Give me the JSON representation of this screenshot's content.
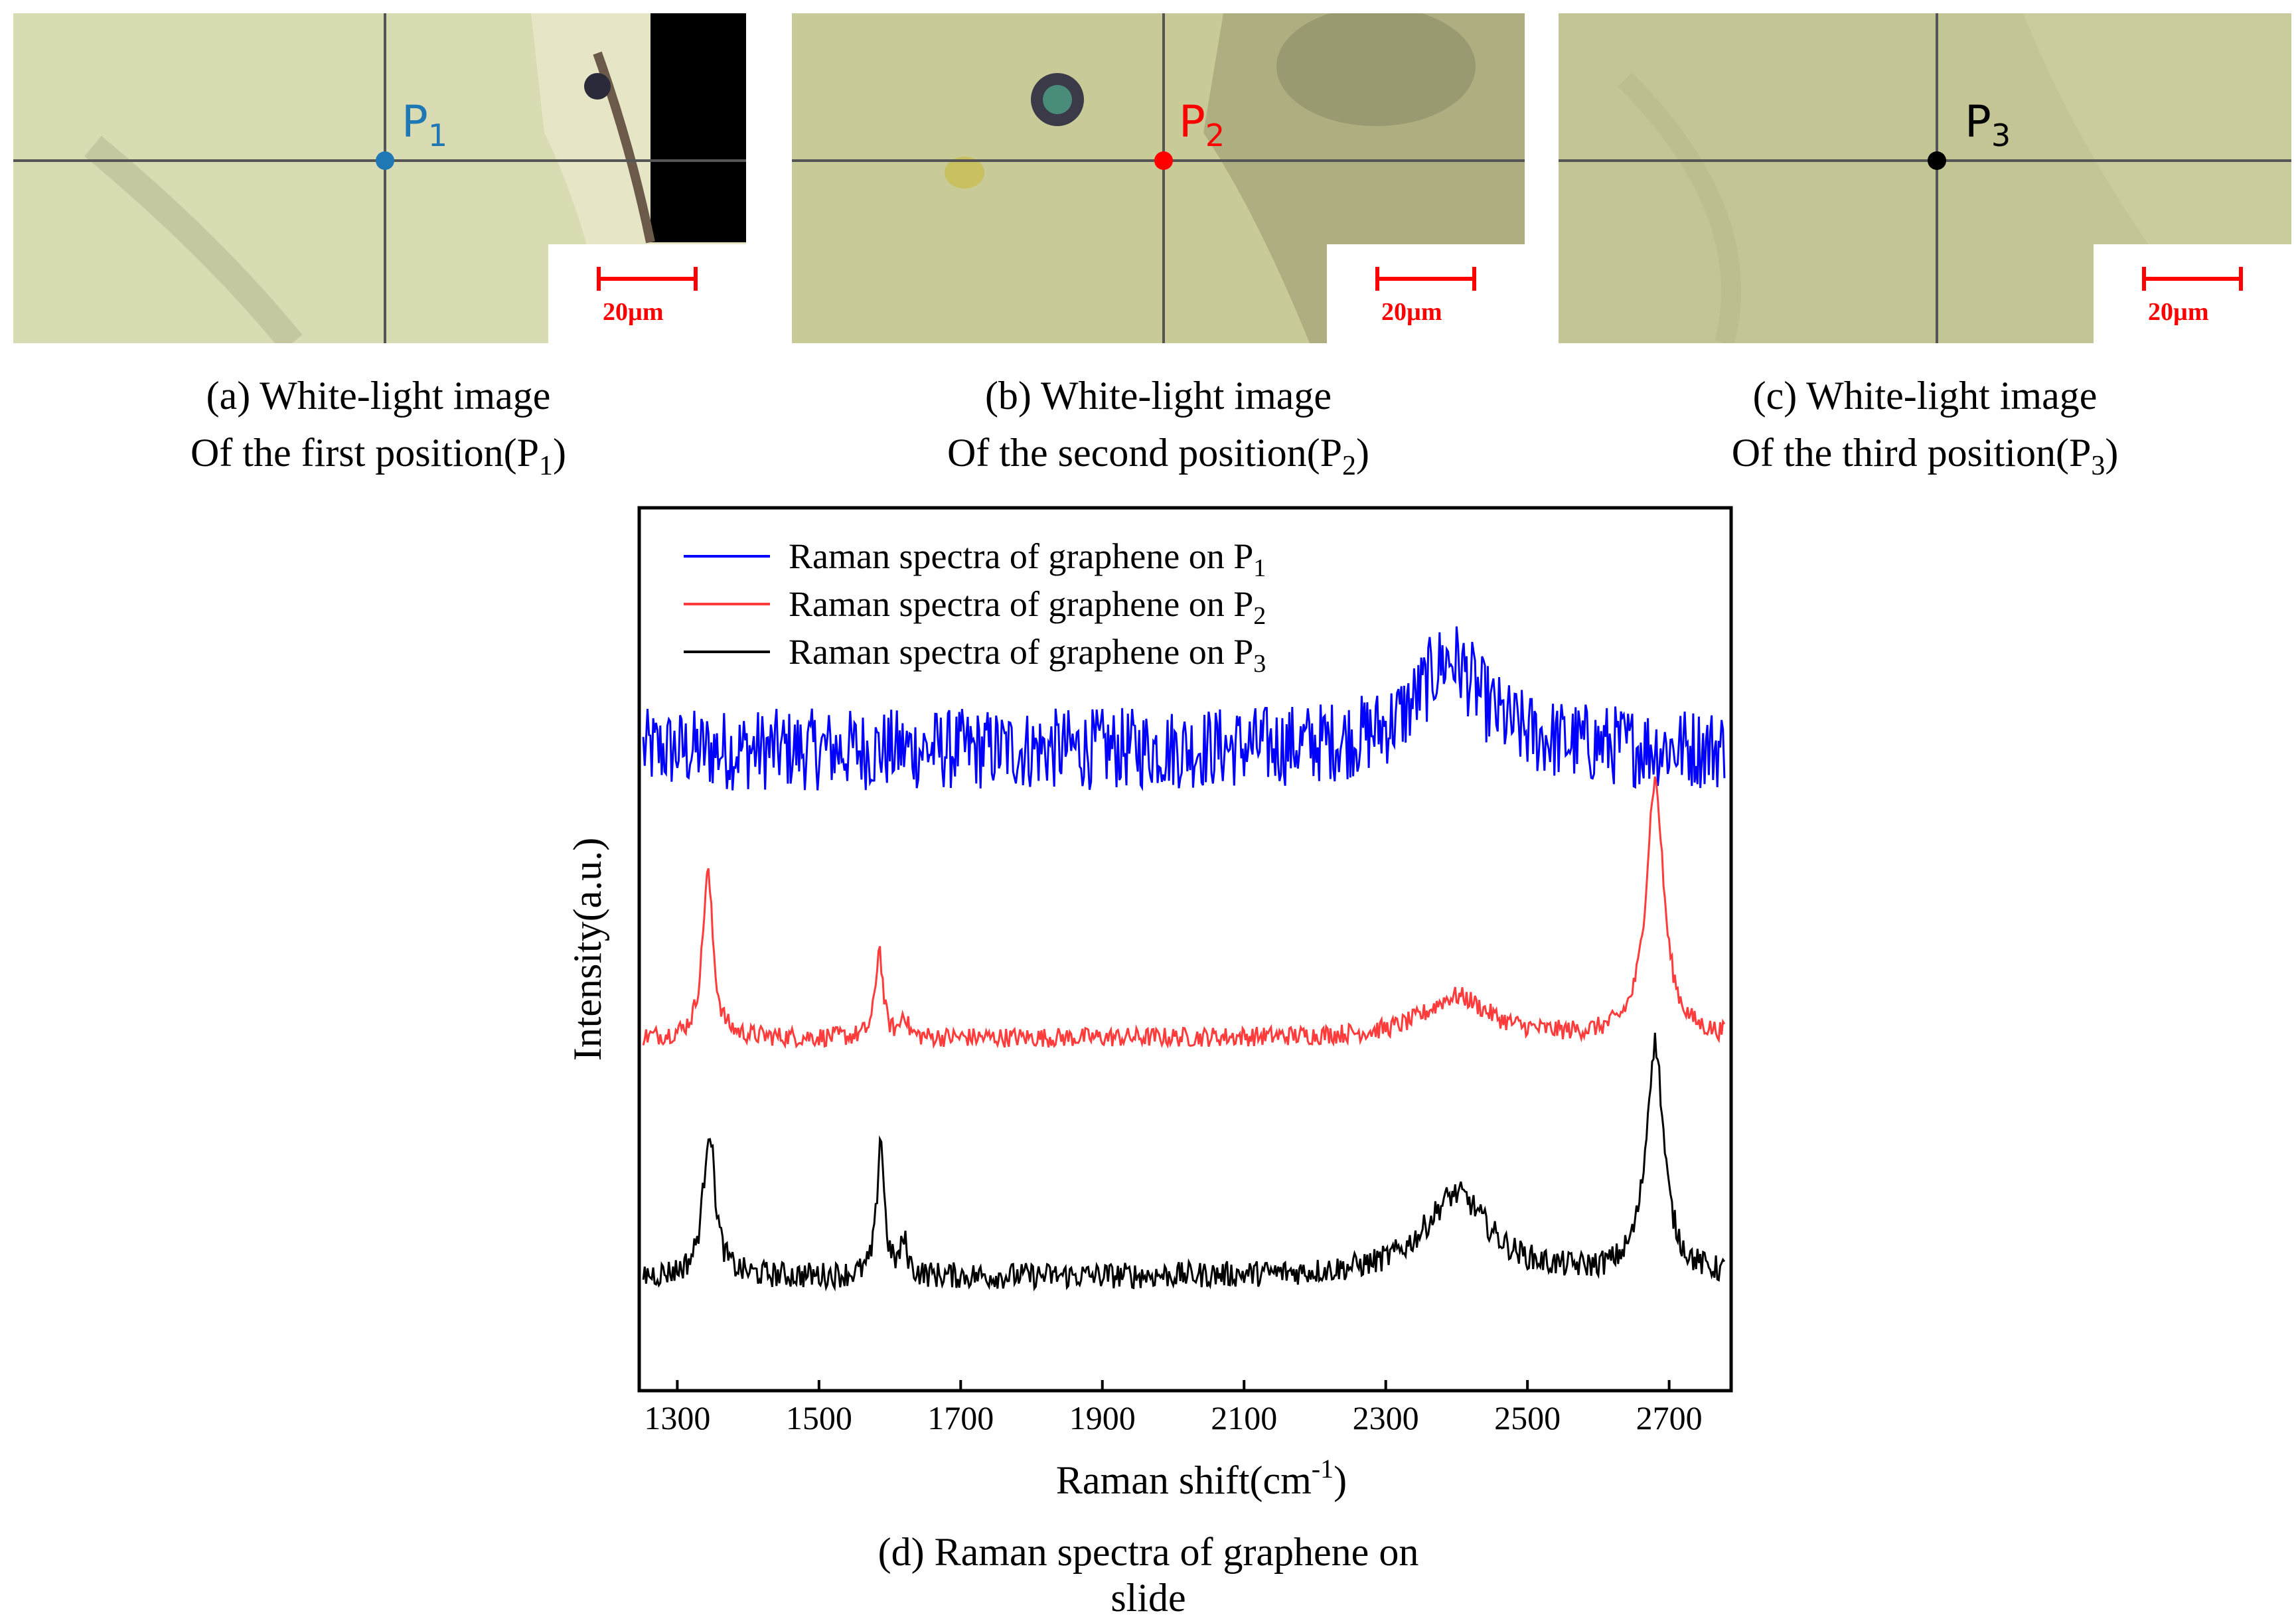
{
  "panels": [
    {
      "id": "a",
      "point_label": "P",
      "point_sub": "1",
      "point_color": "#1f77b4",
      "scale_label": "20µm",
      "caption_line1": "(a)  White-light image",
      "caption_line2_prefix": "Of the first position(P",
      "caption_line2_sub": "1",
      "caption_line2_suffix": ")"
    },
    {
      "id": "b",
      "point_label": "P",
      "point_sub": "2",
      "point_color": "#ff0000",
      "scale_label": "20µm",
      "caption_line1": "(b) White-light image",
      "caption_line2_prefix": "Of the second position(P",
      "caption_line2_sub": "2",
      "caption_line2_suffix": ")"
    },
    {
      "id": "c",
      "point_label": "P",
      "point_sub": "3",
      "point_color": "#000000",
      "scale_label": "20µm",
      "caption_line1": "(c) White-light image",
      "caption_line2_prefix": "Of the third position(P",
      "caption_line2_sub": "3",
      "caption_line2_suffix": ")"
    }
  ],
  "chart_data": {
    "type": "line",
    "title": "(d) Raman spectra of graphene on slide",
    "xlabel_prefix": "Raman shift(cm",
    "xlabel_sup": "-1",
    "xlabel_suffix": ")",
    "ylabel": "Intensity(a.u.)",
    "xlim": [
      1250,
      2780
    ],
    "ylim": [
      0,
      100
    ],
    "xticks": [
      1300,
      1500,
      1700,
      1900,
      2100,
      2300,
      2500,
      2700
    ],
    "y_ticks_labeled": false,
    "legend_position": "top-left",
    "series": [
      {
        "name": "Raman spectra of graphene on P",
        "name_sub": "1",
        "color": "#0000ff",
        "baseline": 73,
        "noise": 5,
        "peaks": [
          [
            2390,
            11,
            55
          ]
        ]
      },
      {
        "name": "Raman spectra of graphene on P",
        "name_sub": "2",
        "color": "#ff3b3b",
        "baseline": 38,
        "noise": 1.2,
        "peaks": [
          [
            1343,
            20,
            9
          ],
          [
            1585,
            11,
            6
          ],
          [
            1620,
            3,
            5
          ],
          [
            2400,
            5,
            55
          ],
          [
            2680,
            31,
            15
          ]
        ]
      },
      {
        "name": "Raman spectra of graphene on P",
        "name_sub": "3",
        "color": "#000000",
        "baseline": 9,
        "noise": 1.6,
        "peaks": [
          [
            1345,
            18,
            10
          ],
          [
            1587,
            17,
            6
          ],
          [
            1620,
            4,
            6
          ],
          [
            2400,
            10,
            55
          ],
          [
            2680,
            28,
            15
          ]
        ]
      }
    ]
  }
}
